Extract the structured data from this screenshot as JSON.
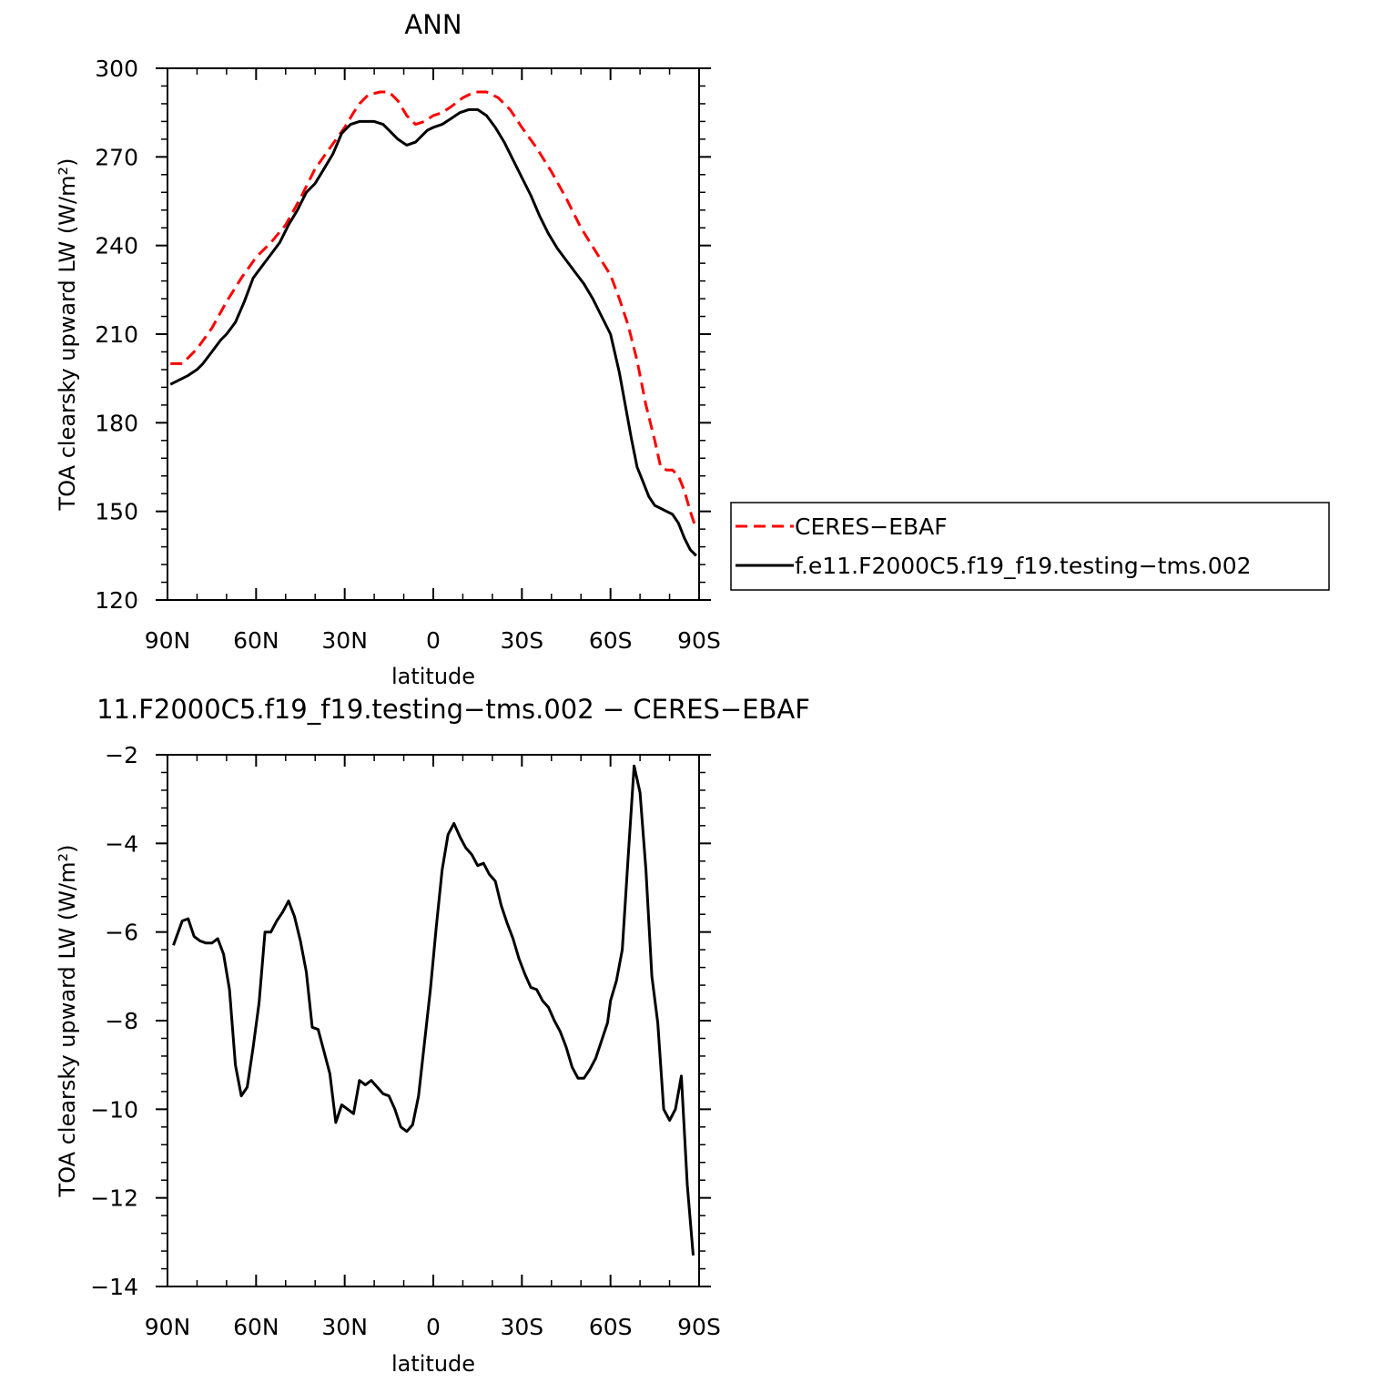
{
  "chart_data": [
    {
      "type": "line",
      "title": "ANN",
      "xlabel": "latitude",
      "ylabel": "TOA clearsky upward LW (W/m²)",
      "ylim": [
        120,
        300
      ],
      "xlim": [
        90,
        -90
      ],
      "x_ticks": [
        {
          "value": 90,
          "label": "90N"
        },
        {
          "value": 60,
          "label": "60N"
        },
        {
          "value": 30,
          "label": "30N"
        },
        {
          "value": 0,
          "label": "0"
        },
        {
          "value": -30,
          "label": "30S"
        },
        {
          "value": -60,
          "label": "60S"
        },
        {
          "value": -90,
          "label": "90S"
        }
      ],
      "y_ticks": [
        {
          "value": 300,
          "label": "300"
        },
        {
          "value": 270,
          "label": "270"
        },
        {
          "value": 240,
          "label": "240"
        },
        {
          "value": 210,
          "label": "210"
        },
        {
          "value": 180,
          "label": "180"
        },
        {
          "value": 150,
          "label": "150"
        },
        {
          "value": 120,
          "label": "120"
        }
      ],
      "legend": {
        "placement": "right"
      },
      "series": [
        {
          "name": "CERES−EBAF",
          "color": "#ff0000",
          "dash": "dashed",
          "x": [
            89,
            85,
            80,
            75,
            70,
            65,
            60,
            55,
            50,
            45,
            40,
            35,
            30,
            27,
            25,
            22,
            18,
            15,
            12,
            9,
            6,
            3,
            0,
            -3,
            -6,
            -10,
            -14,
            -18,
            -22,
            -26,
            -30,
            -35,
            -40,
            -45,
            -50,
            -55,
            -60,
            -63,
            -66,
            -69,
            -72,
            -75,
            -77,
            -79,
            -81,
            -83,
            -85,
            -87,
            -89
          ],
          "y": [
            200,
            200,
            205,
            212,
            221,
            229,
            236,
            241,
            247,
            256,
            266,
            273,
            280,
            285,
            288,
            291,
            292,
            292,
            289,
            284,
            281,
            282,
            284,
            285,
            287,
            290,
            292,
            292,
            290,
            286,
            280,
            273,
            265,
            256,
            246,
            238,
            230,
            222,
            213,
            201,
            186,
            174,
            165,
            164,
            164,
            162,
            157,
            150,
            144
          ]
        },
        {
          "name": "f.e11.F2000C5.f19_f19.testing−tms.002",
          "color": "#000000",
          "dash": "solid",
          "x": [
            89,
            85,
            83,
            80,
            78,
            75,
            72,
            70,
            67,
            64,
            61,
            58,
            55,
            52,
            49,
            46,
            43,
            40,
            37,
            34,
            31,
            28,
            25,
            22,
            20,
            17,
            15,
            12,
            9,
            6,
            4,
            2,
            0,
            -3,
            -6,
            -9,
            -12,
            -15,
            -18,
            -21,
            -24,
            -27,
            -30,
            -33,
            -36,
            -39,
            -42,
            -45,
            -48,
            -51,
            -54,
            -57,
            -60,
            -63,
            -65,
            -67,
            -69,
            -71,
            -73,
            -75,
            -77,
            -79,
            -81,
            -83,
            -85,
            -87,
            -89
          ],
          "y": [
            193,
            195,
            196,
            198,
            200,
            204,
            208,
            210,
            214,
            221,
            229,
            233,
            237,
            241,
            247,
            252,
            258,
            261,
            266,
            271,
            278,
            281,
            282,
            282,
            282,
            281,
            279,
            276,
            274,
            275,
            277,
            279,
            280,
            281,
            283,
            285,
            286,
            286,
            284,
            280,
            275,
            269,
            263,
            257,
            250,
            244,
            239,
            235,
            231,
            227,
            222,
            216,
            210,
            197,
            186,
            175,
            165,
            160,
            155,
            152,
            151,
            150,
            149,
            146,
            141,
            137,
            135
          ]
        }
      ]
    },
    {
      "type": "line",
      "title": "11.F2000C5.f19_f19.testing−tms.002 − CERES−EBAF",
      "xlabel": "latitude",
      "ylabel": "TOA clearsky upward LW (W/m²)",
      "ylim": [
        -14,
        -2
      ],
      "xlim": [
        90,
        -90
      ],
      "x_ticks": [
        {
          "value": 90,
          "label": "90N"
        },
        {
          "value": 60,
          "label": "60N"
        },
        {
          "value": 30,
          "label": "30N"
        },
        {
          "value": 0,
          "label": "0"
        },
        {
          "value": -30,
          "label": "30S"
        },
        {
          "value": -60,
          "label": "60S"
        },
        {
          "value": -90,
          "label": "90S"
        }
      ],
      "y_ticks": [
        {
          "value": -2,
          "label": "−2"
        },
        {
          "value": -4,
          "label": "−4"
        },
        {
          "value": -6,
          "label": "−6"
        },
        {
          "value": -8,
          "label": "−8"
        },
        {
          "value": -10,
          "label": "−10"
        },
        {
          "value": -12,
          "label": "−12"
        },
        {
          "value": -14,
          "label": "−14"
        }
      ],
      "series": [
        {
          "color": "#000000",
          "dash": "solid",
          "x": [
            88,
            85,
            83,
            81,
            79,
            77,
            75,
            73,
            71,
            69,
            67,
            65,
            63,
            61,
            59,
            57,
            55,
            53,
            51,
            49,
            47,
            45,
            43,
            41,
            39,
            37,
            35,
            33,
            31,
            29,
            27,
            25,
            23,
            21,
            19,
            17,
            15,
            13,
            11,
            9,
            7,
            5,
            3,
            1,
            -1,
            -3,
            -5,
            -7,
            -9,
            -11,
            -13,
            -15,
            -17,
            -19,
            -21,
            -23,
            -25,
            -27,
            -29,
            -31,
            -33,
            -35,
            -37,
            -39,
            -41,
            -43,
            -45,
            -47,
            -49,
            -51,
            -53,
            -55,
            -57,
            -59,
            -60,
            -62,
            -64,
            -66,
            -68,
            -70,
            -72,
            -74,
            -76,
            -78,
            -80,
            -82,
            -84,
            -86,
            -88
          ],
          "y": [
            -6.3,
            -5.75,
            -5.7,
            -6.1,
            -6.2,
            -6.25,
            -6.25,
            -6.15,
            -6.5,
            -7.3,
            -9.0,
            -9.7,
            -9.5,
            -8.6,
            -7.6,
            -6.0,
            -6.0,
            -5.75,
            -5.55,
            -5.3,
            -5.65,
            -6.2,
            -6.9,
            -8.15,
            -8.2,
            -8.7,
            -9.2,
            -10.3,
            -9.9,
            -10.0,
            -10.1,
            -9.35,
            -9.45,
            -9.35,
            -9.5,
            -9.65,
            -9.7,
            -10.0,
            -10.4,
            -10.5,
            -10.35,
            -9.7,
            -8.5,
            -7.3,
            -5.9,
            -4.6,
            -3.8,
            -3.55,
            -3.85,
            -4.1,
            -4.25,
            -4.5,
            -4.45,
            -4.7,
            -4.85,
            -5.4,
            -5.8,
            -6.15,
            -6.6,
            -6.95,
            -7.25,
            -7.3,
            -7.55,
            -7.7,
            -8.0,
            -8.25,
            -8.6,
            -9.05,
            -9.3,
            -9.3,
            -9.1,
            -8.85,
            -8.45,
            -8.05,
            -7.55,
            -7.1,
            -6.4,
            -4.3,
            -2.25,
            -2.85,
            -4.6,
            -7.0,
            -8.05,
            -10.0,
            -10.25,
            -10.0,
            -9.25,
            -11.7,
            -13.3
          ]
        }
      ]
    }
  ]
}
